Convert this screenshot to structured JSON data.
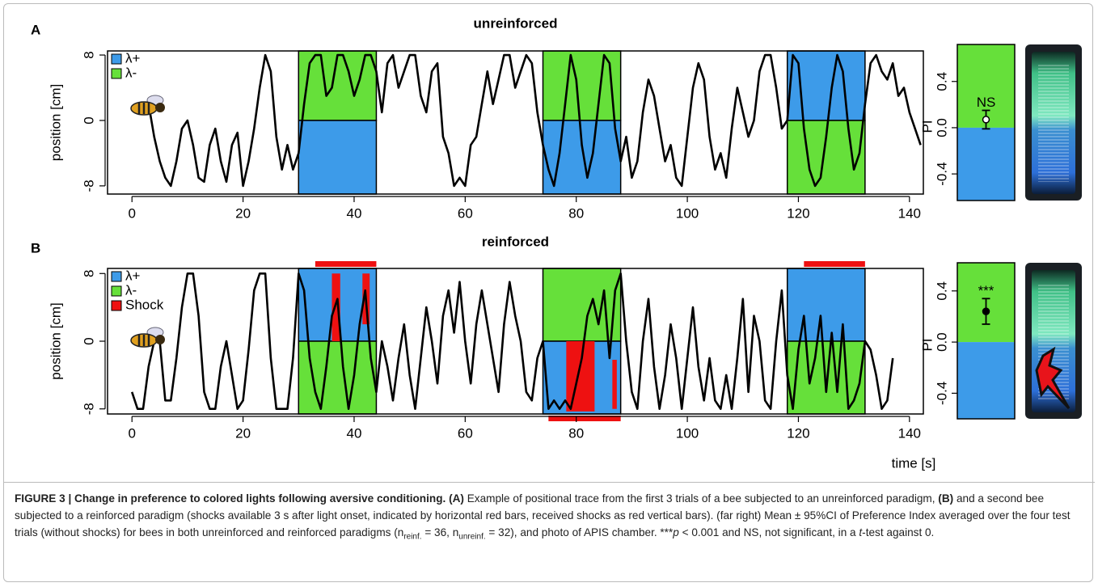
{
  "chart_data": [
    {
      "type": "line",
      "panel_label": "A",
      "title": "unreinforced",
      "y_label": "position [cm]",
      "xlim": [
        -4.4,
        142.5
      ],
      "xticks": [
        0,
        20,
        40,
        60,
        80,
        100,
        120,
        140
      ],
      "ylim": [
        -9,
        8.5
      ],
      "yticks": [
        -8,
        0,
        8
      ],
      "color": "#000000",
      "legend": [
        {
          "name": "λ+",
          "color": "#3d9be9"
        },
        {
          "name": "λ-",
          "color": "#66e03a"
        }
      ],
      "trials": [
        {
          "x": [
            30,
            44
          ],
          "upper_color": "#66e03a",
          "lower_color": "#3d9be9"
        },
        {
          "x": [
            74,
            88
          ],
          "upper_color": "#66e03a",
          "lower_color": "#3d9be9"
        },
        {
          "x": [
            118,
            132
          ],
          "upper_color": "#3d9be9",
          "lower_color": "#66e03a"
        }
      ],
      "x": [
        3,
        4,
        5,
        6,
        7,
        8,
        9,
        10,
        11,
        12,
        13,
        14,
        15,
        16,
        17,
        18,
        19,
        20,
        21,
        22,
        23,
        24,
        25,
        26,
        27,
        28,
        29,
        30,
        31,
        32,
        33,
        34,
        35,
        36,
        37,
        38,
        39,
        40,
        41,
        42,
        43,
        44,
        45,
        46,
        47,
        48,
        49,
        50,
        51,
        52,
        53,
        54,
        55,
        56,
        57,
        58,
        59,
        60,
        61,
        62,
        63,
        64,
        65,
        66,
        67,
        68,
        69,
        70,
        71,
        72,
        73,
        74,
        75,
        76,
        77,
        78,
        79,
        80,
        81,
        82,
        83,
        84,
        85,
        86,
        87,
        88,
        89,
        90,
        91,
        92,
        93,
        94,
        95,
        96,
        97,
        98,
        99,
        100,
        101,
        102,
        103,
        104,
        105,
        106,
        107,
        108,
        109,
        110,
        111,
        112,
        113,
        114,
        115,
        116,
        117,
        118,
        119,
        120,
        121,
        122,
        123,
        124,
        125,
        126,
        127,
        128,
        129,
        130,
        131,
        132,
        133,
        134,
        135,
        136,
        137,
        138,
        139,
        140,
        141,
        142
      ],
      "values": [
        2,
        -2,
        -5,
        -7,
        -8,
        -5,
        -1,
        0,
        -3,
        -7,
        -7.5,
        -3,
        -1,
        -5,
        -7.5,
        -3,
        -1.5,
        -8,
        -5,
        -1,
        4,
        8,
        6,
        -2,
        -6,
        -3,
        -6,
        -4,
        2,
        7,
        8,
        8,
        3,
        4,
        8,
        8,
        6,
        3,
        5,
        8,
        8,
        6,
        1,
        7,
        8,
        4,
        6,
        8,
        8,
        3,
        1,
        6,
        7,
        -2,
        -4,
        -8,
        -7,
        -8,
        -3,
        -2,
        2,
        6,
        2,
        5,
        8,
        8,
        4,
        6,
        8,
        7,
        1,
        -3,
        -6,
        -8,
        -4,
        2,
        8,
        5,
        -3,
        -7,
        -4,
        2,
        8,
        7,
        -1,
        -5,
        -2,
        -7,
        -5,
        1,
        5,
        3,
        -1,
        -5,
        -3,
        -7,
        -8,
        -2,
        4,
        7,
        5,
        -2,
        -6,
        -4,
        -7,
        -1,
        4,
        1,
        -2,
        0,
        6,
        8,
        8,
        4,
        -1,
        0,
        8,
        7,
        -1,
        -6,
        -8,
        -7,
        -2,
        4,
        8,
        6,
        -1,
        -6,
        -4,
        2,
        7,
        8,
        6,
        5,
        7,
        3,
        4,
        1,
        -1,
        -3
      ]
    },
    {
      "type": "pi",
      "y_label": "PI",
      "ylim": [
        -0.63,
        0.72
      ],
      "yticks": [
        -0.4,
        {
          "value": 0,
          "label": "0.0"
        },
        0.4
      ],
      "value": 0.07,
      "error": 0.08,
      "annotation": "NS",
      "upper_color": "#66e03a",
      "lower_color": "#3d9be9"
    },
    {
      "type": "line",
      "panel_label": "B",
      "title": "reinforced",
      "y_label": "position [cm]",
      "x_label": "time [s]",
      "xlim": [
        -4.4,
        142.5
      ],
      "xticks": [
        0,
        20,
        40,
        60,
        80,
        100,
        120,
        140
      ],
      "ylim": [
        -8.6,
        8.6
      ],
      "yticks": [
        -8,
        0,
        8
      ],
      "color": "#000000",
      "legend": [
        {
          "name": "λ+",
          "color": "#3d9be9"
        },
        {
          "name": "λ-",
          "color": "#66e03a"
        },
        {
          "name": "Shock",
          "color": "#ee1111"
        }
      ],
      "trials": [
        {
          "x": [
            30,
            44
          ],
          "upper_color": "#3d9be9",
          "lower_color": "#66e03a"
        },
        {
          "x": [
            74,
            88
          ],
          "upper_color": "#66e03a",
          "lower_color": "#3d9be9"
        },
        {
          "x": [
            118,
            132
          ],
          "upper_color": "#3d9be9",
          "lower_color": "#66e03a"
        }
      ],
      "shocks_available": [
        {
          "x": [
            33,
            44
          ],
          "side": "top"
        },
        {
          "x": [
            75,
            88
          ],
          "side": "bottom"
        },
        {
          "x": [
            121,
            132
          ],
          "side": "top"
        }
      ],
      "shocks_received": [
        {
          "x": [
            36,
            37.5
          ],
          "y": [
            0,
            8
          ]
        },
        {
          "x": [
            41.5,
            42.8
          ],
          "y": [
            2,
            8
          ]
        },
        {
          "x": [
            78.2,
            83.3
          ],
          "y": [
            -8.3,
            0
          ]
        },
        {
          "x": [
            86.5,
            87.3
          ],
          "y": [
            -8,
            -2.2
          ]
        }
      ],
      "x": [
        0,
        1,
        2,
        3,
        4,
        5,
        6,
        7,
        8,
        9,
        10,
        11,
        12,
        13,
        14,
        15,
        16,
        17,
        18,
        19,
        20,
        21,
        22,
        23,
        24,
        25,
        26,
        27,
        28,
        29,
        30,
        31,
        32,
        33,
        34,
        35,
        36,
        37,
        38,
        39,
        40,
        41,
        42,
        43,
        44,
        45,
        46,
        47,
        48,
        49,
        50,
        51,
        52,
        53,
        54,
        55,
        56,
        57,
        58,
        59,
        60,
        61,
        62,
        63,
        64,
        65,
        66,
        67,
        68,
        69,
        70,
        71,
        72,
        73,
        74,
        75,
        76,
        77,
        78,
        79,
        80,
        81,
        82,
        83,
        84,
        85,
        86,
        87,
        88,
        89,
        90,
        91,
        92,
        93,
        94,
        95,
        96,
        97,
        98,
        99,
        100,
        101,
        102,
        103,
        104,
        105,
        106,
        107,
        108,
        109,
        110,
        111,
        112,
        113,
        114,
        115,
        116,
        117,
        118,
        119,
        120,
        121,
        122,
        123,
        124,
        125,
        126,
        127,
        128,
        129,
        130,
        131,
        132,
        133,
        134,
        135,
        136,
        137
      ],
      "values": [
        -6,
        -8,
        -8,
        -3,
        0,
        0,
        -7,
        -7,
        -2,
        4,
        8,
        8,
        3,
        -6,
        -8,
        -8,
        -3,
        0,
        -4,
        -8,
        -7,
        -1,
        6,
        8,
        8,
        -2,
        -8,
        -8,
        -8,
        -2,
        8,
        6,
        -2,
        -6,
        -8,
        -3,
        3,
        5,
        -3,
        -8,
        -4,
        2,
        6,
        -2,
        -6,
        0,
        -3,
        -7,
        -2,
        2,
        -4,
        -8,
        -2,
        4,
        0,
        -5,
        3,
        6,
        1,
        7,
        0,
        -5,
        2,
        6,
        2,
        -2,
        -6,
        2,
        7,
        3,
        0,
        -6,
        -7,
        -2,
        0,
        -8,
        -7,
        -8,
        -7,
        -8,
        -5,
        -2,
        3,
        5,
        2,
        6,
        -2,
        6,
        8,
        0,
        -6,
        -8,
        0,
        5,
        -3,
        -8,
        -4,
        2,
        -2,
        -8,
        -2,
        4,
        -3,
        -7,
        -2,
        -7,
        -8,
        -4,
        -8,
        -2,
        5,
        -6,
        3,
        0,
        -7,
        -8,
        0,
        6,
        -4,
        -8,
        -1,
        3,
        -5,
        -2,
        3,
        -6,
        1,
        -6,
        2,
        -8,
        -7,
        -5,
        0,
        -1,
        -4,
        -8,
        -7,
        -2
      ]
    },
    {
      "type": "pi",
      "y_label": "PI",
      "ylim": [
        -0.6,
        0.62
      ],
      "yticks": [
        -0.4,
        {
          "value": 0,
          "label": "0.0"
        },
        0.4
      ],
      "value": 0.24,
      "error": 0.1,
      "annotation": "***",
      "upper_color": "#66e03a",
      "lower_color": "#3d9be9"
    }
  ],
  "caption": {
    "label": "FIGURE 3 | Change in preference to colored lights following aversive conditioning.",
    "segments": [
      {
        "text": "(A)",
        "style": "bold"
      },
      {
        "text": " Example of positional trace from the first 3 trials of a bee subjected to an unreinforced paradigm, ",
        "style": "plain"
      },
      {
        "text": "(B)",
        "style": "bold"
      },
      {
        "text": " and a second bee subjected to a reinforced paradigm (shocks available 3 s after light onset, indicated by horizontal red bars, received shocks as red vertical bars). (far right) Mean ± 95%CI of Preference Index averaged over the four test trials (without shocks) for bees in both unreinforced and reinforced paradigms (n",
        "style": "plain"
      },
      {
        "text": "reinf.",
        "style": "sub"
      },
      {
        "text": " = 36, n",
        "style": "plain"
      },
      {
        "text": "unreinf.",
        "style": "sub"
      },
      {
        "text": " = 32), and photo of APIS chamber. ***",
        "style": "plain"
      },
      {
        "text": "p",
        "style": "italic"
      },
      {
        "text": " < 0.001 and NS, not significant, in a ",
        "style": "plain"
      },
      {
        "text": "t",
        "style": "italic"
      },
      {
        "text": "-test against 0.",
        "style": "plain"
      }
    ]
  }
}
